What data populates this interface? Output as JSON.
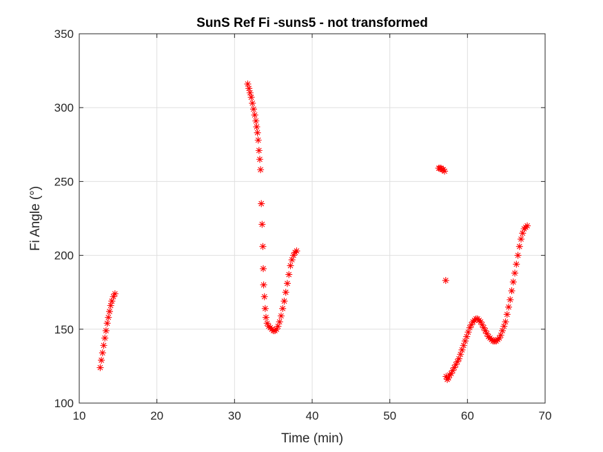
{
  "chart_data": {
    "type": "scatter",
    "title": "SunS Ref Fi -suns5 - not transformed",
    "xlabel": "Time (min)",
    "ylabel": "Fi Angle (°)",
    "xlim": [
      10,
      70
    ],
    "ylim": [
      100,
      350
    ],
    "xticks": [
      "10",
      "20",
      "30",
      "40",
      "50",
      "60",
      "70"
    ],
    "yticks": [
      "100",
      "150",
      "200",
      "250",
      "300",
      "350"
    ],
    "grid": true,
    "marker": "asterisk",
    "series": [
      {
        "color": "#ff0000",
        "points": [
          [
            12.7,
            124
          ],
          [
            12.85,
            129
          ],
          [
            13.0,
            134
          ],
          [
            13.15,
            139
          ],
          [
            13.3,
            144
          ],
          [
            13.45,
            149
          ],
          [
            13.6,
            154
          ],
          [
            13.75,
            158
          ],
          [
            13.9,
            162
          ],
          [
            14.05,
            166
          ],
          [
            14.2,
            169
          ],
          [
            14.4,
            172
          ],
          [
            14.6,
            174
          ],
          [
            31.7,
            316
          ],
          [
            31.85,
            313
          ],
          [
            32.0,
            310
          ],
          [
            32.15,
            307
          ],
          [
            32.3,
            303
          ],
          [
            32.45,
            299
          ],
          [
            32.6,
            295
          ],
          [
            32.75,
            291
          ],
          [
            32.85,
            287
          ],
          [
            32.95,
            283
          ],
          [
            33.05,
            278
          ],
          [
            33.15,
            271
          ],
          [
            33.25,
            265
          ],
          [
            33.35,
            258
          ],
          [
            33.45,
            235
          ],
          [
            33.55,
            221
          ],
          [
            33.65,
            206
          ],
          [
            33.7,
            191
          ],
          [
            33.75,
            180
          ],
          [
            33.85,
            172
          ],
          [
            33.95,
            164
          ],
          [
            34.05,
            158
          ],
          [
            34.2,
            154
          ],
          [
            34.4,
            152
          ],
          [
            34.6,
            151
          ],
          [
            34.8,
            150
          ],
          [
            35.0,
            149
          ],
          [
            35.2,
            149
          ],
          [
            35.4,
            150
          ],
          [
            35.6,
            152
          ],
          [
            35.8,
            155
          ],
          [
            36.0,
            159
          ],
          [
            36.2,
            164
          ],
          [
            36.4,
            169
          ],
          [
            36.6,
            175
          ],
          [
            36.8,
            181
          ],
          [
            37.0,
            187
          ],
          [
            37.2,
            193
          ],
          [
            37.4,
            197
          ],
          [
            37.6,
            200
          ],
          [
            37.8,
            202
          ],
          [
            38.0,
            203
          ],
          [
            56.3,
            259
          ],
          [
            56.45,
            259
          ],
          [
            56.6,
            259
          ],
          [
            56.75,
            258
          ],
          [
            56.9,
            258
          ],
          [
            57.05,
            257
          ],
          [
            57.2,
            183
          ],
          [
            57.25,
            118
          ],
          [
            57.4,
            116
          ],
          [
            57.55,
            117
          ],
          [
            57.7,
            119
          ],
          [
            57.9,
            120
          ],
          [
            58.1,
            122
          ],
          [
            58.3,
            124
          ],
          [
            58.5,
            126
          ],
          [
            58.7,
            128
          ],
          [
            58.9,
            130
          ],
          [
            59.1,
            133
          ],
          [
            59.3,
            136
          ],
          [
            59.5,
            139
          ],
          [
            59.7,
            142
          ],
          [
            59.9,
            145
          ],
          [
            60.1,
            148
          ],
          [
            60.3,
            151
          ],
          [
            60.5,
            153
          ],
          [
            60.7,
            155
          ],
          [
            60.9,
            156
          ],
          [
            61.1,
            157
          ],
          [
            61.3,
            157
          ],
          [
            61.5,
            156
          ],
          [
            61.7,
            155
          ],
          [
            61.9,
            153
          ],
          [
            62.1,
            151
          ],
          [
            62.3,
            149
          ],
          [
            62.5,
            147
          ],
          [
            62.7,
            145
          ],
          [
            62.9,
            144
          ],
          [
            63.1,
            143
          ],
          [
            63.3,
            142
          ],
          [
            63.5,
            142
          ],
          [
            63.7,
            142
          ],
          [
            63.9,
            143
          ],
          [
            64.1,
            144
          ],
          [
            64.3,
            146
          ],
          [
            64.5,
            149
          ],
          [
            64.7,
            152
          ],
          [
            64.9,
            155
          ],
          [
            65.1,
            160
          ],
          [
            65.3,
            165
          ],
          [
            65.5,
            170
          ],
          [
            65.7,
            176
          ],
          [
            65.9,
            182
          ],
          [
            66.1,
            188
          ],
          [
            66.3,
            194
          ],
          [
            66.5,
            200
          ],
          [
            66.7,
            206
          ],
          [
            66.9,
            211
          ],
          [
            67.1,
            215
          ],
          [
            67.3,
            218
          ],
          [
            67.5,
            219
          ],
          [
            67.7,
            220
          ]
        ]
      }
    ]
  }
}
